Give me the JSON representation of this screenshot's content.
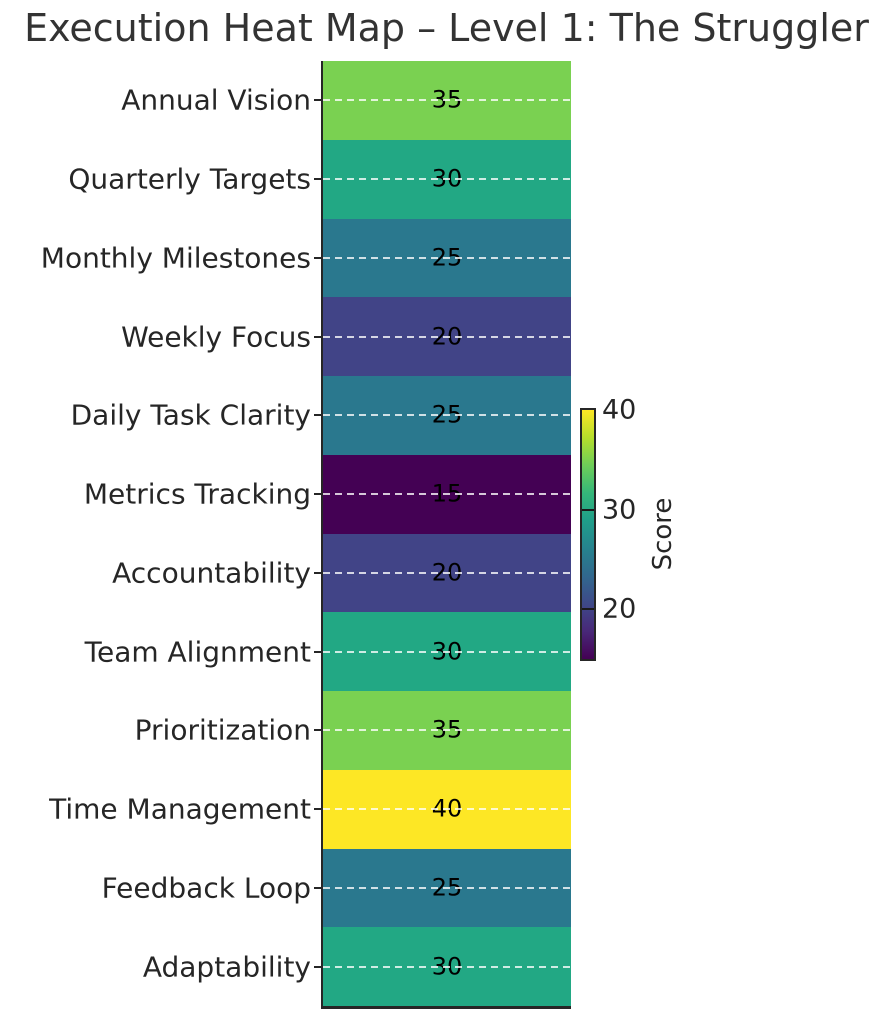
{
  "title": "Execution Heat Map – Level 1: The Struggler",
  "colors": {
    "background": "#ffffff",
    "text": "#262626",
    "title_text": "#333333",
    "spine": "#262626",
    "annotation_text": "#000000",
    "gridline": "#ffffff"
  },
  "chart_data": {
    "type": "heatmap",
    "title": "Execution Heat Map – Level 1: The Struggler",
    "orientation": "single-column vertical heatmap",
    "categories": [
      "Annual Vision",
      "Quarterly Targets",
      "Monthly Milestones",
      "Weekly Focus",
      "Daily Task Clarity",
      "Metrics Tracking",
      "Accountability",
      "Team Alignment",
      "Prioritization",
      "Time Management",
      "Feedback Loop",
      "Adaptability"
    ],
    "values": [
      35,
      30,
      25,
      20,
      25,
      15,
      20,
      30,
      35,
      40,
      25,
      30
    ],
    "cell_colors": [
      "#7ad151",
      "#22a884",
      "#2a788e",
      "#414487",
      "#2a788e",
      "#440154",
      "#414487",
      "#22a884",
      "#7ad151",
      "#fde725",
      "#2a788e",
      "#22a884"
    ],
    "colormap": "viridis",
    "vmin": 15,
    "vmax": 40,
    "annotations": true,
    "grid": "white dashed horizontal lines at each row center",
    "xlabel": "",
    "ylabel": "",
    "colorbar": {
      "label": "Score",
      "ticks": [
        40,
        30,
        20
      ],
      "tick_labels": [
        "40",
        "30",
        "20"
      ],
      "gradient_stops": [
        "#440154",
        "#482878",
        "#3e4989",
        "#31688e",
        "#26828e",
        "#1f9e89",
        "#35b779",
        "#6ece58",
        "#b5de2b",
        "#fde725"
      ]
    }
  }
}
